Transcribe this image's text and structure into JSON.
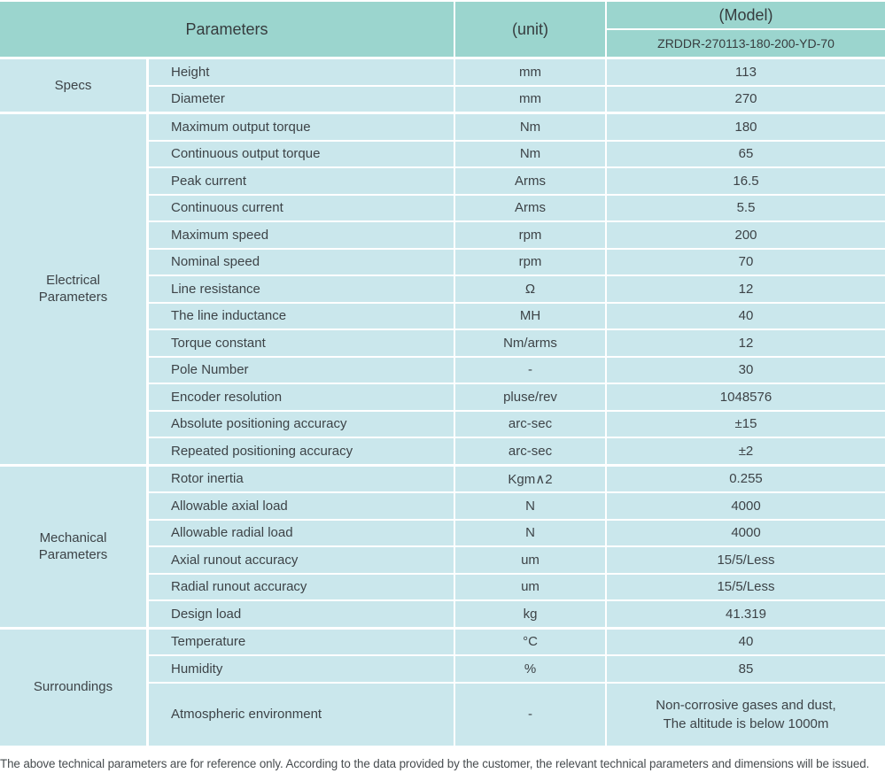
{
  "header": {
    "parameters_label": "Parameters",
    "unit_label": "(unit)",
    "model_label": "(Model)",
    "model_number": "ZRDDR-270113-180-200-YD-70"
  },
  "colors": {
    "header_bg": "#9bd5ce",
    "cell_bg": "#cae7ec",
    "border": "#ffffff",
    "text": "#3d4347"
  },
  "sections": [
    {
      "name": "Specs",
      "rows": [
        {
          "param": "Height",
          "unit": "mm",
          "value": "113"
        },
        {
          "param": "Diameter",
          "unit": "mm",
          "value": "270"
        }
      ]
    },
    {
      "name": "Electrical Parameters",
      "rows": [
        {
          "param": "Maximum output torque",
          "unit": "Nm",
          "value": "180"
        },
        {
          "param": "Continuous output torque",
          "unit": "Nm",
          "value": "65"
        },
        {
          "param": "Peak current",
          "unit": "Arms",
          "value": "16.5"
        },
        {
          "param": "Continuous current",
          "unit": "Arms",
          "value": "5.5"
        },
        {
          "param": "Maximum speed",
          "unit": "rpm",
          "value": "200"
        },
        {
          "param": "Nominal speed",
          "unit": "rpm",
          "value": "70"
        },
        {
          "param": "Line resistance",
          "unit": "Ω",
          "value": "12"
        },
        {
          "param": "The line inductance",
          "unit": "MH",
          "value": "40"
        },
        {
          "param": "Torque constant",
          "unit": "Nm/arms",
          "value": "12"
        },
        {
          "param": "Pole Number",
          "unit": "-",
          "value": "30"
        },
        {
          "param": "Encoder resolution",
          "unit": "pluse/rev",
          "value": "1048576"
        },
        {
          "param": "Absolute positioning accuracy",
          "unit": "arc-sec",
          "value": "±15"
        },
        {
          "param": "Repeated positioning accuracy",
          "unit": "arc-sec",
          "value": "±2"
        }
      ]
    },
    {
      "name": "Mechanical Parameters",
      "rows": [
        {
          "param": "Rotor inertia",
          "unit": "Kgm∧2",
          "value": "0.255"
        },
        {
          "param": "Allowable axial load",
          "unit": "N",
          "value": "4000"
        },
        {
          "param": "Allowable radial load",
          "unit": "N",
          "value": "4000"
        },
        {
          "param": "Axial runout accuracy",
          "unit": "um",
          "value": "15/5/Less"
        },
        {
          "param": "Radial runout accuracy",
          "unit": "um",
          "value": "15/5/Less"
        },
        {
          "param": "Design load",
          "unit": "kg",
          "value": "41.319"
        }
      ]
    },
    {
      "name": "Surroundings",
      "rows": [
        {
          "param": "Temperature",
          "unit": "°C",
          "value": "40"
        },
        {
          "param": "Humidity",
          "unit": "%",
          "value": "85"
        },
        {
          "param": "Atmospheric environment",
          "unit": "-",
          "value": "Non-corrosive gases and dust,\nThe altitude is below 1000m",
          "tall": true
        }
      ]
    }
  ],
  "footer": {
    "note": "The above technical parameters are for reference only. According to the data provided by the customer, the relevant technical parameters and dimensions will be issued."
  }
}
